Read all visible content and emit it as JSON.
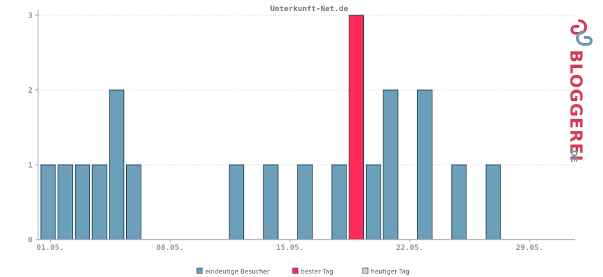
{
  "chart_data": {
    "type": "bar",
    "title": "Unterkunft-Net.de",
    "x_tick_labels": [
      "01.05.",
      "08.05.",
      "15.05.",
      "22.05.",
      "29.05."
    ],
    "y_ticks": [
      "0",
      "1",
      "2",
      "3"
    ],
    "ylim": [
      0,
      3
    ],
    "grid": true,
    "legend_position": "bottom-center",
    "days": [
      1,
      2,
      3,
      4,
      5,
      6,
      7,
      8,
      9,
      10,
      11,
      12,
      13,
      14,
      15,
      16,
      17,
      18,
      19,
      20,
      21,
      22,
      23,
      24,
      25,
      26,
      27,
      28,
      29,
      30,
      31
    ],
    "series": [
      {
        "name": "eindeutige Besucher",
        "color": "#6b9fba",
        "values": [
          1,
          1,
          1,
          1,
          2,
          1,
          0,
          0,
          0,
          0,
          0,
          1,
          0,
          1,
          0,
          1,
          0,
          1,
          0,
          1,
          2,
          0,
          2,
          0,
          1,
          0,
          1,
          0,
          0,
          0,
          0
        ]
      },
      {
        "name": "bester Tag",
        "color": "#ff2a5a",
        "values": [
          0,
          0,
          0,
          0,
          0,
          0,
          0,
          0,
          0,
          0,
          0,
          0,
          0,
          0,
          0,
          0,
          0,
          0,
          3,
          0,
          0,
          0,
          0,
          0,
          0,
          0,
          0,
          0,
          0,
          0,
          0
        ]
      },
      {
        "name": "heutiger Tag",
        "color": "#cccccc",
        "values": [
          0,
          0,
          0,
          0,
          0,
          0,
          0,
          0,
          0,
          0,
          0,
          0,
          0,
          0,
          0,
          0,
          0,
          0,
          0,
          0,
          0,
          0,
          0,
          0,
          0,
          0,
          0,
          0,
          0,
          0,
          0
        ]
      }
    ]
  },
  "logo": {
    "text": "BLOGGEREI",
    "suffix": ".DE"
  }
}
